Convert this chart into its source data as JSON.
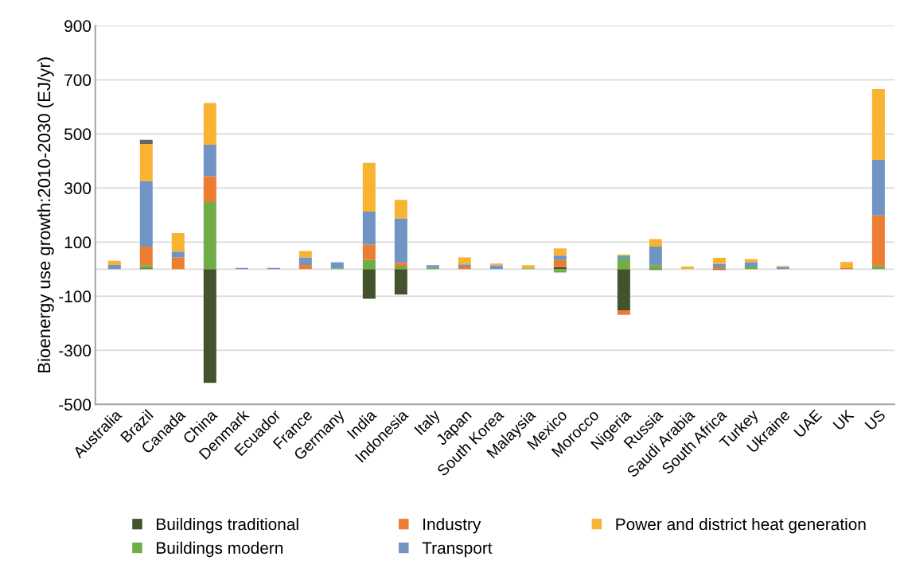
{
  "chart_data": {
    "type": "bar",
    "stacked": true,
    "ylabel": "Bioenergy use growth:2010-2030 (EJ/yr)",
    "categories": [
      "Australia",
      "Brazil",
      "Canada",
      "China",
      "Denmark",
      "Ecuador",
      "France",
      "Germany",
      "India",
      "Indonesia",
      "Italy",
      "Japan",
      "South Korea",
      "Malaysia",
      "Mexico",
      "Morocco",
      "Nigeria",
      "Russia",
      "Saudi Arabia",
      "South Africa",
      "Turkey",
      "Ukraine",
      "UAE",
      "UK",
      "US"
    ],
    "series": [
      {
        "name": "Buildings traditional",
        "color": "#44532b",
        "values": [
          null,
          3,
          null,
          -420,
          null,
          null,
          null,
          null,
          -109,
          -94,
          null,
          null,
          null,
          null,
          8,
          null,
          -152,
          -3,
          null,
          -3,
          null,
          null,
          null,
          null,
          null
        ]
      },
      {
        "name": "Buildings modern",
        "color": "#70ad47",
        "values": [
          null,
          12,
          null,
          248,
          null,
          null,
          null,
          3,
          34,
          10,
          5,
          null,
          null,
          3,
          -12,
          null,
          39,
          15,
          null,
          null,
          10,
          null,
          null,
          null,
          12
        ]
      },
      {
        "name": "Industry",
        "color": "#ed7d31",
        "values": [
          null,
          68,
          44,
          96,
          null,
          null,
          16,
          null,
          57,
          14,
          null,
          10,
          null,
          null,
          26,
          null,
          -17,
          null,
          null,
          7,
          null,
          null,
          null,
          6,
          187
        ]
      },
      {
        "name": "Transport",
        "color": "#7094c4",
        "values": [
          16,
          243,
          21,
          116,
          5,
          5,
          28,
          22,
          122,
          164,
          10,
          8,
          14,
          null,
          16,
          null,
          11,
          68,
          null,
          13,
          16,
          8,
          null,
          null,
          205
        ]
      },
      {
        "name": "Power and district heat generation",
        "color": "#f8b333",
        "values": [
          15,
          137,
          68,
          154,
          null,
          null,
          23,
          null,
          180,
          68,
          null,
          26,
          7,
          12,
          27,
          null,
          4,
          28,
          10,
          22,
          11,
          4,
          null,
          21,
          262
        ]
      },
      {
        "color": "#6e6163",
        "values": [
          null,
          15,
          null,
          null,
          null,
          null,
          null,
          null,
          null,
          null,
          null,
          null,
          null,
          null,
          null,
          null,
          null,
          null,
          null,
          null,
          null,
          null,
          null,
          null,
          null
        ]
      }
    ],
    "ylim": [
      -500,
      900
    ],
    "yticks": [
      -500,
      -300,
      -100,
      100,
      300,
      500,
      700,
      900
    ],
    "grid": "y",
    "legend": "bottom"
  }
}
